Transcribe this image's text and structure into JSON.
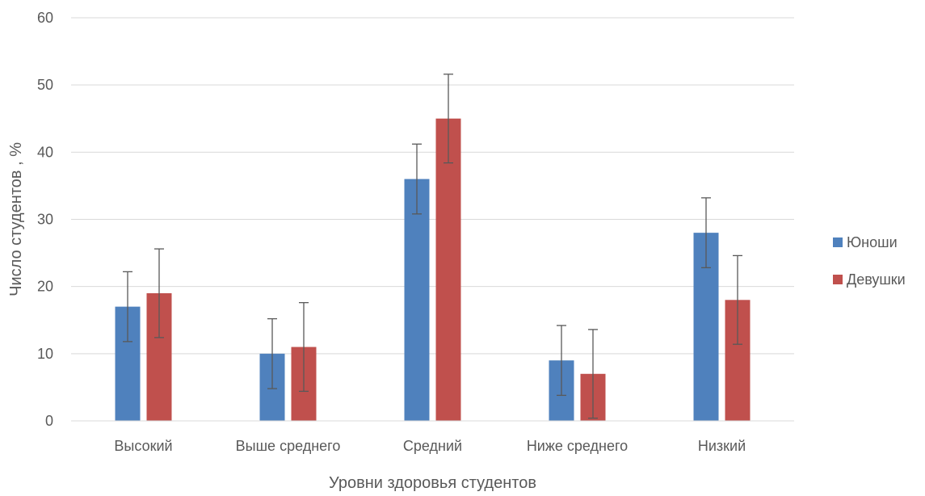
{
  "chart_data": {
    "type": "bar",
    "title": "",
    "xlabel": "Уровни здоровья студентов",
    "ylabel": "Число студентов , %",
    "ylim": [
      0,
      60
    ],
    "yticks": [
      0,
      10,
      20,
      30,
      40,
      50,
      60
    ],
    "grid": true,
    "legend_position": "right",
    "categories": [
      "Высокий",
      "Выше среднего",
      "Средний",
      "Ниже среднего",
      "Низкий"
    ],
    "series": [
      {
        "name": "Юноши",
        "color": "#4f81bd",
        "values": [
          17,
          10,
          36,
          9,
          28
        ],
        "error": [
          5.2,
          5.2,
          5.2,
          5.2,
          5.2
        ]
      },
      {
        "name": "Девушки",
        "color": "#c0504d",
        "values": [
          19,
          11,
          45,
          7,
          18
        ],
        "error": [
          6.6,
          6.6,
          6.6,
          6.6,
          6.6
        ]
      }
    ]
  }
}
